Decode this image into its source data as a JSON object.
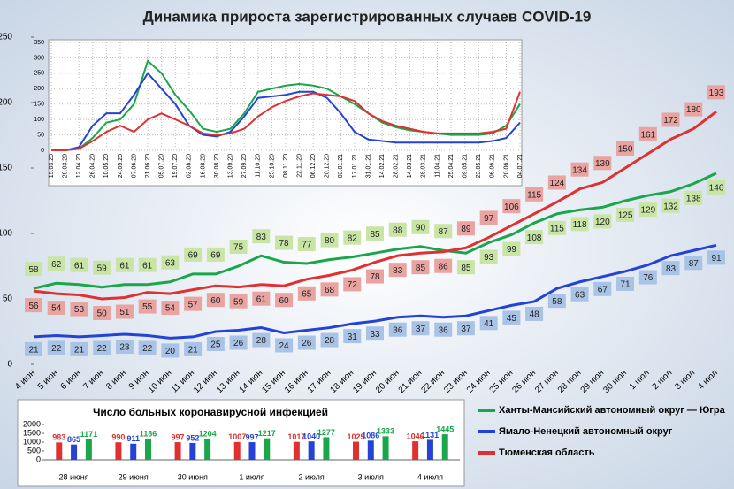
{
  "chart_data": [
    {
      "type": "line",
      "title": "Динамика прироста зарегистрированных случаев COVID-19",
      "categories": [
        "4 июн",
        "5 июн",
        "6 июн",
        "7 июн",
        "8 июн",
        "9 июн",
        "10 июн",
        "11 июн",
        "12 июн",
        "13 июн",
        "14 июн",
        "15 июн",
        "16 июн",
        "17 июн",
        "18 июн",
        "19 июн",
        "20 июн",
        "21 июн",
        "22 июн",
        "23 июн",
        "24 июн",
        "25 июн",
        "26 июн",
        "27 июн",
        "28 июн",
        "29 июн",
        "30 июн",
        "1 июл",
        "2 июл",
        "3 июл",
        "4 июл"
      ],
      "series": [
        {
          "name": "Ханты-Мансийский автономный округ — Югра",
          "color": "#1aa64a",
          "label_color": "#c9e5a5",
          "values": [
            58,
            62,
            61,
            59,
            61,
            61,
            63,
            69,
            69,
            75,
            83,
            78,
            77,
            80,
            82,
            85,
            88,
            90,
            87,
            85,
            93,
            99,
            108,
            115,
            118,
            120,
            125,
            129,
            132,
            138,
            146
          ]
        },
        {
          "name": "Ямало-Ненецкий автономный округ",
          "color": "#2443d6",
          "label_color": "#a9c3e6",
          "values": [
            21,
            22,
            21,
            22,
            23,
            22,
            20,
            21,
            25,
            26,
            28,
            24,
            26,
            28,
            31,
            33,
            36,
            37,
            36,
            37,
            41,
            45,
            48,
            58,
            63,
            67,
            71,
            76,
            83,
            87,
            91
          ]
        },
        {
          "name": "Тюменская область",
          "color": "#e03030",
          "label_color": "#e9a3a0",
          "values": [
            56,
            54,
            53,
            50,
            51,
            55,
            54,
            57,
            60,
            59,
            61,
            60,
            65,
            68,
            72,
            78,
            83,
            85,
            86,
            89,
            97,
            106,
            115,
            124,
            134,
            139,
            150,
            161,
            172,
            180,
            193
          ]
        }
      ],
      "ylim": [
        0,
        250
      ],
      "yticks": [
        0,
        50,
        100,
        150,
        200,
        250
      ],
      "legend": "bottom-right"
    },
    {
      "type": "line",
      "categories": [
        "15.03.20",
        "29.03.20",
        "12.04.20",
        "26.04.20",
        "10.05.20",
        "24.05.20",
        "07.06.20",
        "21.06.20",
        "05.07.20",
        "19.07.20",
        "02.08.20",
        "16.08.20",
        "30.08.20",
        "13.09.20",
        "27.09.20",
        "11.10.20",
        "25.10.20",
        "08.11.20",
        "22.11.20",
        "06.12.20",
        "20.12.20",
        "03.01.21",
        "17.01.21",
        "31.01.21",
        "14.02.21",
        "28.02.21",
        "14.03.21",
        "28.03.21",
        "11.04.21",
        "25.04.21",
        "09.05.21",
        "23.05.21",
        "06.06.21",
        "20.06.21",
        "04.07.21"
      ],
      "series": [
        {
          "color": "#1aa64a",
          "values": [
            0,
            0,
            5,
            40,
            90,
            100,
            150,
            290,
            250,
            180,
            130,
            70,
            60,
            70,
            120,
            190,
            200,
            210,
            215,
            210,
            200,
            175,
            150,
            120,
            90,
            75,
            65,
            60,
            55,
            50,
            50,
            50,
            55,
            80,
            150
          ]
        },
        {
          "color": "#2443d6",
          "values": [
            0,
            0,
            10,
            80,
            120,
            120,
            180,
            250,
            200,
            150,
            80,
            50,
            45,
            60,
            110,
            170,
            175,
            180,
            190,
            190,
            170,
            120,
            60,
            35,
            30,
            25,
            25,
            25,
            25,
            25,
            25,
            25,
            30,
            40,
            90
          ]
        },
        {
          "color": "#e03030",
          "values": [
            0,
            0,
            5,
            30,
            60,
            80,
            60,
            100,
            120,
            100,
            80,
            55,
            50,
            55,
            70,
            110,
            140,
            160,
            175,
            185,
            180,
            175,
            160,
            120,
            95,
            80,
            70,
            60,
            55,
            55,
            55,
            55,
            60,
            70,
            190
          ]
        }
      ],
      "ylim": [
        0,
        350
      ],
      "yticks": [
        0,
        50,
        100,
        150,
        200,
        250,
        300,
        350
      ],
      "grid": true
    },
    {
      "type": "bar",
      "title": "Число больных коронавирусной инфекцией",
      "categories": [
        "28 июня",
        "29 июня",
        "30 июня",
        "1 июля",
        "2 июля",
        "3 июля",
        "4 июля"
      ],
      "series": [
        {
          "color": "#e03030",
          "values": [
            983,
            990,
            997,
            1007,
            1017,
            1025,
            1046
          ]
        },
        {
          "color": "#2443d6",
          "values": [
            865,
            911,
            952,
            997,
            1040,
            1086,
            1131
          ]
        },
        {
          "color": "#1aa64a",
          "values": [
            1171,
            1186,
            1204,
            1217,
            1277,
            1333,
            1445
          ]
        }
      ],
      "ylim": [
        0,
        2000
      ],
      "yticks": [
        0,
        500,
        1000,
        1500,
        2000
      ]
    }
  ]
}
